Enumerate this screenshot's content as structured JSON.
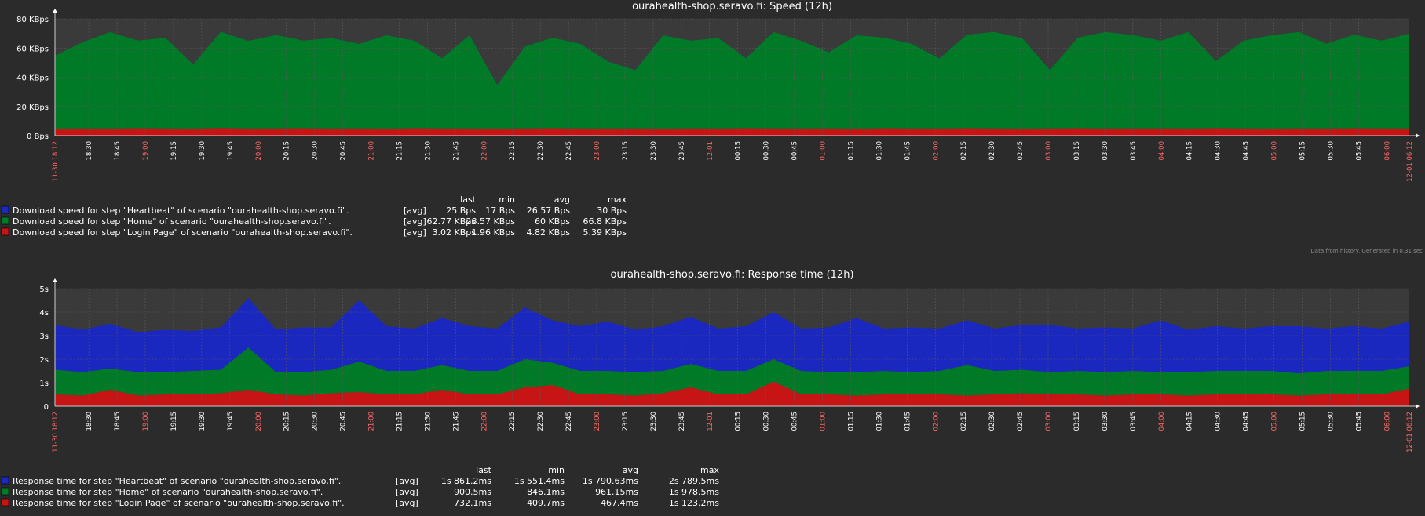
{
  "colors": {
    "background": "#2b2b2b",
    "plot_bg": "#3a3a3a",
    "grid": "#5a5a5a",
    "blue": "#1a28c0",
    "green": "#007a26",
    "red": "#c71414",
    "major_tick": "#ff6666"
  },
  "charts": [
    {
      "title": "ourahealth-shop.seravo.fi: Speed (12h)",
      "type": "area",
      "unit": "KBps",
      "yticks": [
        "0 Bps",
        "20 KBps",
        "40 KBps",
        "60 KBps",
        "80 KBps"
      ],
      "ylim": [
        0,
        80
      ],
      "x_start_label": "11-30 18:12",
      "x_end_label": "12-01 06:12",
      "xticks": [
        "18:30",
        "18:45",
        "19:00",
        "19:15",
        "19:30",
        "19:45",
        "20:00",
        "20:15",
        "20:30",
        "20:45",
        "21:00",
        "21:15",
        "21:30",
        "21:45",
        "22:00",
        "22:15",
        "22:30",
        "22:45",
        "23:00",
        "23:15",
        "23:30",
        "23:45",
        "12-01",
        "00:15",
        "00:30",
        "00:45",
        "01:00",
        "01:15",
        "01:30",
        "01:45",
        "02:00",
        "02:15",
        "02:30",
        "02:45",
        "03:00",
        "03:15",
        "03:30",
        "03:45",
        "04:00",
        "04:15",
        "04:30",
        "04:45",
        "05:00",
        "05:15",
        "05:30",
        "05:45",
        "06:00"
      ],
      "legend_headers": [
        "last",
        "min",
        "avg",
        "max"
      ],
      "series": [
        {
          "name": "Download speed for step \"Heartbeat\" of scenario \"ourahealth-shop.seravo.fi\".",
          "func": "[avg]",
          "color": "blue",
          "last": "25 Bps",
          "min": "17 Bps",
          "avg": "26.57 Bps",
          "max": "30 Bps"
        },
        {
          "name": "Download speed for step \"Home\" of scenario \"ourahealth-shop.seravo.fi\".",
          "func": "[avg]",
          "color": "green",
          "last": "62.77 KBps",
          "min": "28.57 KBps",
          "avg": "60 KBps",
          "max": "66.8 KBps"
        },
        {
          "name": "Download speed for step \"Login Page\" of scenario \"ourahealth-shop.seravo.fi\".",
          "func": "[avg]",
          "color": "red",
          "last": "3.02 KBps",
          "min": "1.96 KBps",
          "avg": "4.82 KBps",
          "max": "5.39 KBps"
        }
      ],
      "stack": [
        {
          "series": 2,
          "values": [
            4.8,
            5.0,
            4.9,
            5.1,
            5.0,
            4.8,
            5.2,
            4.9,
            5.0,
            5.1,
            4.9,
            5.0,
            4.8,
            5.1,
            5.0,
            4.9,
            4.7,
            5.0,
            5.1,
            5.0,
            4.9,
            5.0,
            4.8,
            5.0,
            4.9,
            5.1,
            5.0,
            4.9,
            5.0,
            4.8,
            5.1,
            5.0,
            4.9,
            5.1,
            5.0,
            4.8,
            5.0,
            5.1,
            4.9,
            5.0,
            5.0,
            4.9,
            5.1,
            5.0,
            4.8,
            5.0,
            4.9,
            5.1,
            5.0,
            4.9
          ]
        },
        {
          "series": 1,
          "values": [
            50,
            59,
            66,
            60,
            62,
            44,
            66,
            60,
            64,
            60,
            62,
            58,
            64,
            60,
            48,
            64,
            30,
            56,
            62,
            58,
            46,
            40,
            64,
            60,
            62,
            48,
            66,
            60,
            52,
            64,
            62,
            58,
            48,
            64,
            66,
            62,
            40,
            62,
            66,
            64,
            60,
            66,
            46,
            60,
            64,
            66,
            58,
            64,
            60,
            65
          ]
        },
        {
          "series": 0,
          "values": [
            0.03,
            0.03,
            0.03,
            0.03,
            0.03,
            0.03,
            0.03,
            0.03,
            0.03,
            0.03,
            0.03,
            0.03,
            0.03,
            0.03,
            0.03,
            0.03,
            0.03,
            0.03,
            0.03,
            0.03,
            0.03,
            0.03,
            0.03,
            0.03,
            0.03,
            0.03,
            0.03,
            0.03,
            0.03,
            0.03,
            0.03,
            0.03,
            0.03,
            0.03,
            0.03,
            0.03,
            0.03,
            0.03,
            0.03,
            0.03,
            0.03,
            0.03,
            0.03,
            0.03,
            0.03,
            0.03,
            0.03,
            0.03,
            0.03,
            0.03
          ]
        }
      ],
      "footer": "Data from history. Generated in 0.31 sec"
    },
    {
      "title": "ourahealth-shop.seravo.fi: Response time (12h)",
      "type": "area",
      "unit": "s",
      "yticks": [
        "0",
        "1s",
        "2s",
        "3s",
        "4s",
        "5s"
      ],
      "ylim": [
        0,
        5
      ],
      "x_start_label": "11-30 18:12",
      "x_end_label": "12-01 06:12",
      "xticks": [
        "18:30",
        "18:45",
        "19:00",
        "19:15",
        "19:30",
        "19:45",
        "20:00",
        "20:15",
        "20:30",
        "20:45",
        "21:00",
        "21:15",
        "21:30",
        "21:45",
        "22:00",
        "22:15",
        "22:30",
        "22:45",
        "23:00",
        "23:15",
        "23:30",
        "23:45",
        "12-01",
        "00:15",
        "00:30",
        "00:45",
        "01:00",
        "01:15",
        "01:30",
        "01:45",
        "02:00",
        "02:15",
        "02:30",
        "02:45",
        "03:00",
        "03:15",
        "03:30",
        "03:45",
        "04:00",
        "04:15",
        "04:30",
        "04:45",
        "05:00",
        "05:15",
        "05:30",
        "05:45",
        "06:00"
      ],
      "legend_headers": [
        "last",
        "min",
        "avg",
        "max"
      ],
      "series": [
        {
          "name": "Response time for step \"Heartbeat\" of scenario \"ourahealth-shop.seravo.fi\".",
          "func": "[avg]",
          "color": "blue",
          "last": "1s 861.2ms",
          "min": "1s 551.4ms",
          "avg": "1s 790.63ms",
          "max": "2s 789.5ms"
        },
        {
          "name": "Response time for step \"Home\" of scenario \"ourahealth-shop.seravo.fi\".",
          "func": "[avg]",
          "color": "green",
          "last": "900.5ms",
          "min": "846.1ms",
          "avg": "961.15ms",
          "max": "1s 978.5ms"
        },
        {
          "name": "Response time for step \"Login Page\" of scenario \"ourahealth-shop.seravo.fi\".",
          "func": "[avg]",
          "color": "red",
          "last": "732.1ms",
          "min": "409.7ms",
          "avg": "467.4ms",
          "max": "1s 123.2ms"
        }
      ],
      "stack": [
        {
          "series": 2,
          "values": [
            0.5,
            0.45,
            0.7,
            0.45,
            0.5,
            0.5,
            0.55,
            0.7,
            0.5,
            0.45,
            0.55,
            0.6,
            0.5,
            0.5,
            0.7,
            0.5,
            0.5,
            0.8,
            0.9,
            0.5,
            0.5,
            0.45,
            0.55,
            0.8,
            0.5,
            0.5,
            1.05,
            0.5,
            0.5,
            0.45,
            0.5,
            0.5,
            0.5,
            0.45,
            0.5,
            0.55,
            0.5,
            0.5,
            0.45,
            0.5,
            0.5,
            0.45,
            0.5,
            0.5,
            0.5,
            0.45,
            0.5,
            0.5,
            0.5,
            0.75
          ]
        },
        {
          "series": 1,
          "values": [
            1.05,
            1.0,
            0.9,
            1.0,
            0.95,
            1.0,
            1.0,
            1.8,
            0.95,
            1.0,
            1.0,
            1.3,
            1.0,
            1.0,
            1.05,
            1.0,
            1.0,
            1.2,
            0.95,
            1.0,
            1.0,
            1.0,
            0.95,
            1.0,
            1.0,
            1.0,
            0.95,
            1.0,
            0.95,
            1.0,
            1.0,
            0.95,
            1.0,
            1.3,
            1.0,
            1.0,
            0.95,
            1.0,
            1.0,
            1.0,
            0.95,
            1.0,
            1.0,
            1.0,
            1.0,
            0.95,
            1.0,
            1.0,
            1.0,
            0.95
          ]
        },
        {
          "series": 0,
          "values": [
            1.9,
            1.8,
            1.9,
            1.7,
            1.8,
            1.7,
            1.8,
            2.1,
            1.8,
            1.9,
            1.8,
            2.6,
            1.9,
            1.8,
            2.0,
            1.9,
            1.8,
            2.2,
            1.8,
            1.9,
            2.1,
            1.8,
            1.9,
            2.0,
            1.8,
            1.9,
            2.0,
            1.8,
            1.9,
            2.3,
            1.8,
            1.9,
            1.8,
            1.9,
            1.8,
            1.9,
            2.0,
            1.8,
            1.9,
            1.8,
            2.2,
            1.8,
            1.9,
            1.8,
            1.9,
            2.0,
            1.8,
            1.9,
            1.8,
            1.9
          ]
        }
      ]
    }
  ]
}
